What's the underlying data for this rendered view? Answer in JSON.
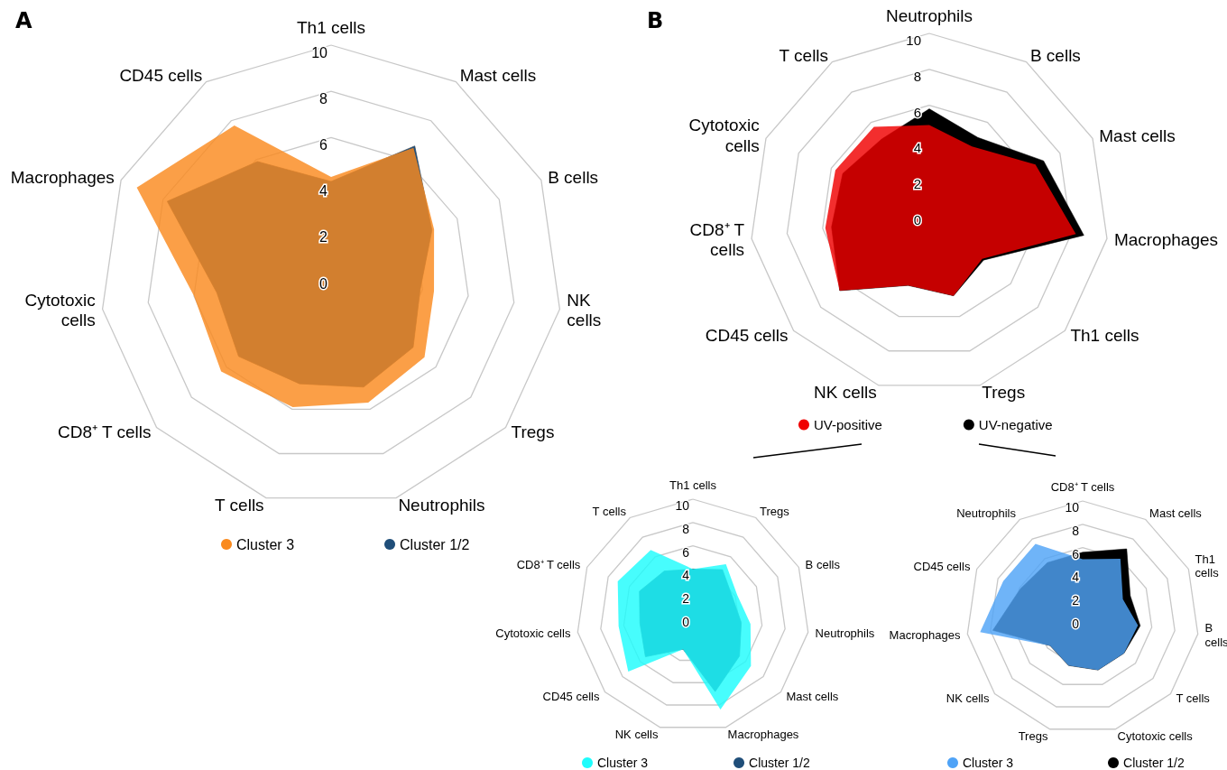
{
  "chart_data": [
    {
      "type": "radar",
      "title": "A",
      "categories": [
        "Th1 cells",
        "Mast cells",
        "B cells",
        "NK cells",
        "Tregs",
        "Neutrophils",
        "T cells",
        "CD8⁺ T cells",
        "Cytotoxic cells",
        "Macrophages",
        "CD45 cells"
      ],
      "ylim": [
        0,
        10
      ],
      "yticks": [
        0,
        2,
        4,
        6,
        8,
        10
      ],
      "legend": "bottom",
      "marker": "none",
      "grid": true,
      "series": [
        {
          "name": "Cluster 3",
          "color": "#fa8a1e",
          "values": [
            4.3,
            6.6,
            4.9,
            4.5,
            5.35,
            5.7,
            5.9,
            6.3,
            6.0,
            9.25,
            7.75
          ]
        },
        {
          "name": "Cluster 1/2",
          "color": "#1f4e79",
          "values": [
            4.1,
            6.7,
            4.8,
            3.9,
            4.7,
            5.0,
            4.85,
            5.3,
            5.0,
            7.8,
            5.9
          ]
        }
      ]
    },
    {
      "type": "radar",
      "title": "B",
      "categories": [
        "Neutrophils",
        "B cells",
        "Mast cells",
        "Macrophages",
        "Th1 cells",
        "Tregs",
        "NK cells",
        "CD45 cells",
        "CD8⁺ T cells",
        "Cytotoxic cells",
        "T cells"
      ],
      "ylim": [
        0,
        10
      ],
      "yticks": [
        0,
        2,
        4,
        6,
        8,
        10
      ],
      "legend": "bottom",
      "marker": "none",
      "grid": true,
      "series": [
        {
          "name": "UV-positive",
          "color": "#f00000",
          "values": [
            4.9,
            4.4,
            6.5,
            8.25,
            3.9,
            4.8,
            4.2,
            6.6,
            5.85,
            5.75,
            5.7
          ]
        },
        {
          "name": "UV-negative",
          "color": "#000000",
          "values": [
            5.8,
            5.0,
            7.0,
            8.7,
            4.0,
            4.8,
            4.2,
            6.6,
            5.5,
            5.3,
            4.9
          ]
        }
      ]
    },
    {
      "type": "radar",
      "categories": [
        "Th1 cells",
        "Tregs",
        "B cells",
        "Neutrophils",
        "Mast cells",
        "Macrophages",
        "NK cells",
        "CD45 cells",
        "Cytotoxic cells",
        "CD8⁺ T cells",
        "T cells"
      ],
      "ylim": [
        0,
        10
      ],
      "yticks": [
        0,
        2,
        4,
        6,
        8,
        10
      ],
      "legend": "bottom",
      "marker": "none",
      "grid": true,
      "series": [
        {
          "name": "Cluster 3",
          "color": "#1ffcfc",
          "values": [
            4.0,
            5.25,
            4.2,
            5.0,
            6.6,
            8.4,
            3.0,
            7.35,
            6.45,
            7.1,
            6.7
          ]
        },
        {
          "name": "Cluster 1/2",
          "color": "#1f4e79",
          "values": [
            4.0,
            4.7,
            3.75,
            4.2,
            5.3,
            6.8,
            3.0,
            5.4,
            4.6,
            5.05,
            4.55
          ]
        }
      ]
    },
    {
      "type": "radar",
      "categories": [
        "CD8⁺ T cells",
        "Mast cells",
        "Th1 cells",
        "B cells",
        "T cells",
        "Cytotoxic cells",
        "Tregs",
        "NK cells",
        "Macrophages",
        "CD45 cells",
        "Neutrophils"
      ],
      "ylim": [
        0,
        10
      ],
      "yticks": [
        0,
        2,
        4,
        6,
        8,
        10
      ],
      "legend": "bottom",
      "marker": "none",
      "grid": true,
      "series": [
        {
          "name": "Cluster 3",
          "color": "#4fa3f7",
          "values": [
            5.0,
            6.0,
            3.8,
            4.8,
            4.7,
            4.7,
            4.3,
            3.7,
            8.9,
            7.5,
            7.5
          ]
        },
        {
          "name": "Cluster 1/2",
          "color": "#000000",
          "values": [
            5.6,
            7.0,
            4.5,
            5.0,
            4.7,
            4.7,
            4.3,
            3.7,
            7.8,
            5.9,
            5.6
          ]
        }
      ]
    }
  ]
}
